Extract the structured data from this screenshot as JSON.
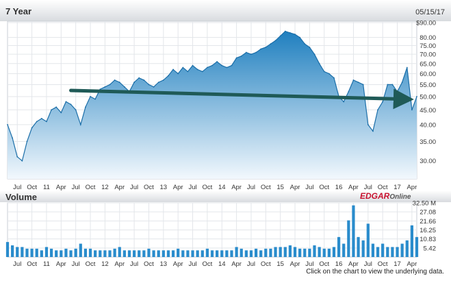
{
  "colors": {
    "header_band_top": "#ffffff",
    "header_band_bottom": "#d8dbdf",
    "price_fill_top": "#1f7fbf",
    "price_fill_bottom": "#f2f8fd",
    "price_line": "#1b6ea8",
    "trend_arrow": "#1f5a57",
    "volume_bar": "#2a8ccc",
    "grid": "#e3e6ea",
    "edgar_red": "#c8102e",
    "edgar_online": "#555555"
  },
  "chart_data": [
    {
      "type": "area",
      "title": "7 Year",
      "date_label": "05/15/17",
      "ytick_labels": [
        "$90.00",
        "80.00",
        "75.00",
        "70.00",
        "65.00",
        "60.00",
        "55.00",
        "50.00",
        "45.00",
        "40.00",
        "35.00",
        "30.00"
      ],
      "ytick_values": [
        90,
        80,
        75,
        70,
        65,
        60,
        55,
        50,
        45,
        40,
        35,
        30
      ],
      "y_scale": "log",
      "ylim": [
        26,
        91
      ],
      "xtick_labels": [
        "Jul",
        "Oct",
        "11",
        "Apr",
        "Jul",
        "Oct",
        "12",
        "Apr",
        "Jul",
        "Oct",
        "13",
        "Apr",
        "Jul",
        "Oct",
        "14",
        "Apr",
        "Jul",
        "Oct",
        "15",
        "Apr",
        "Jul",
        "Oct",
        "16",
        "Apr",
        "Jul",
        "Oct",
        "17",
        "Apr"
      ],
      "xtick_dates": [
        "2010-07",
        "2010-10",
        "2011-01",
        "2011-04",
        "2011-07",
        "2011-10",
        "2012-01",
        "2012-04",
        "2012-07",
        "2012-10",
        "2013-01",
        "2013-04",
        "2013-07",
        "2013-10",
        "2014-01",
        "2014-04",
        "2014-07",
        "2014-10",
        "2015-01",
        "2015-04",
        "2015-07",
        "2015-10",
        "2016-01",
        "2016-04",
        "2016-07",
        "2016-10",
        "2017-01",
        "2017-04"
      ],
      "xlim": [
        "2010-05",
        "2017-05"
      ],
      "grid": true,
      "series": [
        {
          "x": [
            "2010-05",
            "2010-06",
            "2010-07",
            "2010-08",
            "2010-09",
            "2010-10",
            "2010-11",
            "2010-12",
            "2011-01",
            "2011-02",
            "2011-03",
            "2011-04",
            "2011-05",
            "2011-06",
            "2011-07",
            "2011-08",
            "2011-09",
            "2011-10",
            "2011-11",
            "2011-12",
            "2012-01",
            "2012-02",
            "2012-03",
            "2012-04",
            "2012-05",
            "2012-06",
            "2012-07",
            "2012-08",
            "2012-09",
            "2012-10",
            "2012-11",
            "2012-12",
            "2013-01",
            "2013-02",
            "2013-03",
            "2013-04",
            "2013-05",
            "2013-06",
            "2013-07",
            "2013-08",
            "2013-09",
            "2013-10",
            "2013-11",
            "2013-12",
            "2014-01",
            "2014-02",
            "2014-03",
            "2014-04",
            "2014-05",
            "2014-06",
            "2014-07",
            "2014-08",
            "2014-09",
            "2014-10",
            "2014-11",
            "2014-12",
            "2015-01",
            "2015-02",
            "2015-03",
            "2015-04",
            "2015-05",
            "2015-06",
            "2015-07",
            "2015-08",
            "2015-09",
            "2015-10",
            "2015-11",
            "2015-12",
            "2016-01",
            "2016-02",
            "2016-03",
            "2016-04",
            "2016-05",
            "2016-06",
            "2016-07",
            "2016-08",
            "2016-09",
            "2016-10",
            "2016-11",
            "2016-12",
            "2017-01",
            "2017-02",
            "2017-03",
            "2017-04",
            "2017-05"
          ],
          "values": [
            40,
            36,
            31,
            30,
            35,
            39,
            41,
            42,
            41,
            45,
            46,
            44,
            48,
            47,
            45,
            40,
            46,
            50,
            49,
            53,
            54,
            55,
            57,
            56,
            54,
            52,
            56,
            58,
            57,
            55,
            54,
            56,
            57,
            59,
            62,
            60,
            63,
            61,
            64,
            62,
            61,
            63,
            64,
            66,
            64,
            63,
            64,
            68,
            69,
            71,
            70,
            71,
            73,
            74,
            76,
            78,
            81,
            84,
            83,
            82,
            80,
            76,
            74,
            70,
            65,
            61,
            60,
            58,
            50,
            48,
            52,
            57,
            56,
            55,
            40,
            38,
            45,
            48,
            55,
            55,
            52,
            56,
            63,
            45,
            50
          ]
        }
      ],
      "annotations": [
        {
          "type": "trend_arrow",
          "from": {
            "x": "2011-06",
            "y": 52.5
          },
          "to": {
            "x": "2017-04",
            "y": 49
          }
        }
      ]
    },
    {
      "type": "bar",
      "title": "Volume",
      "ytick_labels": [
        "32.50 M",
        "27.08",
        "21.66",
        "16.25",
        "10.83",
        "5.42"
      ],
      "ytick_values": [
        32.5,
        27.08,
        21.66,
        16.25,
        10.83,
        5.42
      ],
      "ylim": [
        0,
        32.5
      ],
      "xtick_labels": [
        "Jul",
        "Oct",
        "11",
        "Apr",
        "Jul",
        "Oct",
        "12",
        "Apr",
        "Jul",
        "Oct",
        "13",
        "Apr",
        "Jul",
        "Oct",
        "14",
        "Apr",
        "Jul",
        "Oct",
        "15",
        "Apr",
        "Jul",
        "Oct",
        "16",
        "Apr",
        "Jul",
        "Oct",
        "17",
        "Apr"
      ],
      "grid": true,
      "x": [
        "2010-05",
        "2010-06",
        "2010-07",
        "2010-08",
        "2010-09",
        "2010-10",
        "2010-11",
        "2010-12",
        "2011-01",
        "2011-02",
        "2011-03",
        "2011-04",
        "2011-05",
        "2011-06",
        "2011-07",
        "2011-08",
        "2011-09",
        "2011-10",
        "2011-11",
        "2011-12",
        "2012-01",
        "2012-02",
        "2012-03",
        "2012-04",
        "2012-05",
        "2012-06",
        "2012-07",
        "2012-08",
        "2012-09",
        "2012-10",
        "2012-11",
        "2012-12",
        "2013-01",
        "2013-02",
        "2013-03",
        "2013-04",
        "2013-05",
        "2013-06",
        "2013-07",
        "2013-08",
        "2013-09",
        "2013-10",
        "2013-11",
        "2013-12",
        "2014-01",
        "2014-02",
        "2014-03",
        "2014-04",
        "2014-05",
        "2014-06",
        "2014-07",
        "2014-08",
        "2014-09",
        "2014-10",
        "2014-11",
        "2014-12",
        "2015-01",
        "2015-02",
        "2015-03",
        "2015-04",
        "2015-05",
        "2015-06",
        "2015-07",
        "2015-08",
        "2015-09",
        "2015-10",
        "2015-11",
        "2015-12",
        "2016-01",
        "2016-02",
        "2016-03",
        "2016-04",
        "2016-05",
        "2016-06",
        "2016-07",
        "2016-08",
        "2016-09",
        "2016-10",
        "2016-11",
        "2016-12",
        "2017-01",
        "2017-02",
        "2017-03",
        "2017-04",
        "2017-05"
      ],
      "values": [
        9,
        7,
        6,
        6,
        5,
        5,
        5,
        4,
        6,
        5,
        4,
        4,
        5,
        4,
        5,
        8,
        5,
        5,
        4,
        4,
        4,
        4,
        5,
        6,
        4,
        4,
        4,
        4,
        4,
        5,
        4,
        4,
        4,
        4,
        4,
        5,
        4,
        4,
        4,
        4,
        4,
        5,
        4,
        4,
        4,
        4,
        4,
        6,
        5,
        4,
        4,
        5,
        4,
        5,
        5,
        6,
        6,
        6,
        7,
        6,
        5,
        5,
        5,
        7,
        6,
        5,
        5,
        6,
        12,
        8,
        22,
        31,
        12,
        10,
        20,
        8,
        6,
        8,
        6,
        6,
        6,
        8,
        10,
        19,
        12
      ]
    }
  ],
  "branding": {
    "edgar": "EDGAR",
    "online": "Online"
  },
  "footer": {
    "text": "Click on the chart to view the underlying data."
  }
}
